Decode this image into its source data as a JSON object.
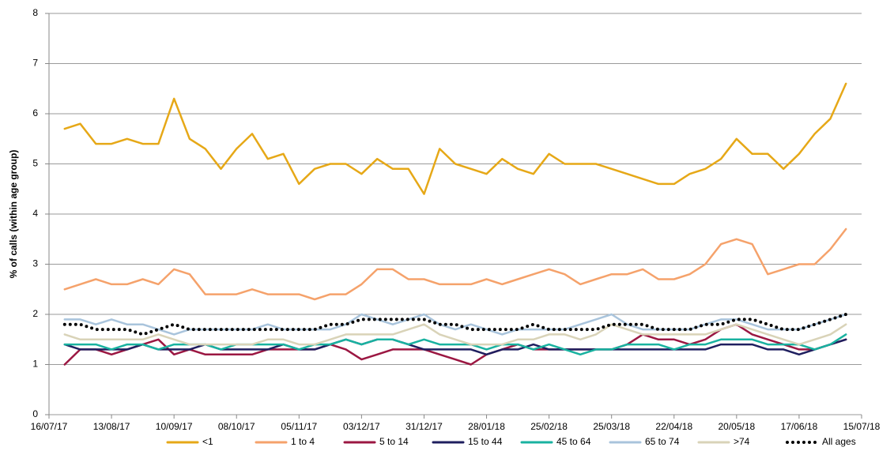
{
  "chart_data": {
    "type": "line",
    "y_label": "% of calls (within age group)",
    "xlim": [
      "16/07/17",
      "15/07/18"
    ],
    "xticks": [
      "16/07/17",
      "13/08/17",
      "10/09/17",
      "08/10/17",
      "05/11/17",
      "03/12/17",
      "31/12/17",
      "28/01/18",
      "25/02/18",
      "25/03/18",
      "22/04/18",
      "20/05/18",
      "17/06/18",
      "15/07/18"
    ],
    "ylim": [
      0,
      8
    ],
    "yticks": [
      0,
      1,
      2,
      3,
      4,
      5,
      6,
      7,
      8
    ],
    "grid": true,
    "legend": "bottom",
    "x": [
      "23/07/17",
      "30/07/17",
      "06/08/17",
      "13/08/17",
      "20/08/17",
      "27/08/17",
      "03/09/17",
      "10/09/17",
      "17/09/17",
      "24/09/17",
      "01/10/17",
      "08/10/17",
      "15/10/17",
      "22/10/17",
      "29/10/17",
      "05/11/17",
      "12/11/17",
      "19/11/17",
      "26/11/17",
      "03/12/17",
      "10/12/17",
      "17/12/17",
      "24/12/17",
      "31/12/17",
      "07/01/18",
      "14/01/18",
      "21/01/18",
      "28/01/18",
      "04/02/18",
      "11/02/18",
      "18/02/18",
      "25/02/18",
      "04/03/18",
      "11/03/18",
      "18/03/18",
      "25/03/18",
      "01/04/18",
      "08/04/18",
      "15/04/18",
      "22/04/18",
      "29/04/18",
      "06/05/18",
      "13/05/18",
      "20/05/18",
      "27/05/18",
      "03/06/18",
      "10/06/18",
      "17/06/18",
      "24/06/18",
      "01/07/18",
      "08/07/18"
    ],
    "series": [
      {
        "name": "<1",
        "color": "#E6A817",
        "values": [
          5.7,
          5.8,
          5.4,
          5.4,
          5.5,
          5.4,
          5.4,
          6.3,
          5.5,
          5.3,
          4.9,
          5.3,
          5.6,
          5.1,
          5.2,
          4.6,
          4.9,
          5.0,
          5.0,
          4.8,
          5.1,
          4.9,
          4.9,
          4.4,
          5.3,
          5.0,
          4.9,
          4.8,
          5.1,
          4.9,
          4.8,
          5.2,
          5.0,
          5.0,
          5.0,
          4.9,
          4.8,
          4.7,
          4.6,
          4.6,
          4.8,
          4.9,
          5.1,
          5.5,
          5.2,
          5.2,
          4.9,
          5.2,
          5.6,
          5.9,
          6.6
        ]
      },
      {
        "name": "1 to 4",
        "color": "#F5A26B",
        "values": [
          2.5,
          2.6,
          2.7,
          2.6,
          2.6,
          2.7,
          2.6,
          2.9,
          2.8,
          2.4,
          2.4,
          2.4,
          2.5,
          2.4,
          2.4,
          2.4,
          2.3,
          2.4,
          2.4,
          2.6,
          2.9,
          2.9,
          2.7,
          2.7,
          2.6,
          2.6,
          2.6,
          2.7,
          2.6,
          2.7,
          2.8,
          2.9,
          2.8,
          2.6,
          2.7,
          2.8,
          2.8,
          2.9,
          2.7,
          2.7,
          2.8,
          3.0,
          3.4,
          3.5,
          3.4,
          2.8,
          2.9,
          3.0,
          3.0,
          3.3,
          3.7
        ]
      },
      {
        "name": "5 to 14",
        "color": "#9B1742",
        "values": [
          1.0,
          1.3,
          1.3,
          1.2,
          1.3,
          1.4,
          1.5,
          1.2,
          1.3,
          1.2,
          1.2,
          1.2,
          1.2,
          1.3,
          1.3,
          1.3,
          1.3,
          1.4,
          1.3,
          1.1,
          1.2,
          1.3,
          1.3,
          1.3,
          1.2,
          1.1,
          1.0,
          1.2,
          1.3,
          1.4,
          1.3,
          1.3,
          1.3,
          1.3,
          1.3,
          1.3,
          1.4,
          1.6,
          1.5,
          1.5,
          1.4,
          1.5,
          1.7,
          1.8,
          1.6,
          1.5,
          1.4,
          1.3,
          1.3,
          1.4,
          1.5
        ]
      },
      {
        "name": "15 to 44",
        "color": "#1F1F5F",
        "values": [
          1.4,
          1.3,
          1.3,
          1.3,
          1.3,
          1.4,
          1.3,
          1.3,
          1.3,
          1.4,
          1.3,
          1.3,
          1.3,
          1.3,
          1.4,
          1.3,
          1.3,
          1.4,
          1.5,
          1.4,
          1.5,
          1.5,
          1.4,
          1.3,
          1.3,
          1.3,
          1.3,
          1.2,
          1.3,
          1.3,
          1.4,
          1.3,
          1.3,
          1.3,
          1.3,
          1.3,
          1.3,
          1.3,
          1.3,
          1.3,
          1.3,
          1.3,
          1.4,
          1.4,
          1.4,
          1.3,
          1.3,
          1.2,
          1.3,
          1.4,
          1.5
        ]
      },
      {
        "name": "45 to 64",
        "color": "#19B2A0",
        "values": [
          1.4,
          1.4,
          1.4,
          1.3,
          1.4,
          1.4,
          1.3,
          1.4,
          1.4,
          1.4,
          1.3,
          1.4,
          1.4,
          1.4,
          1.4,
          1.3,
          1.4,
          1.4,
          1.5,
          1.4,
          1.5,
          1.5,
          1.4,
          1.5,
          1.4,
          1.4,
          1.4,
          1.3,
          1.4,
          1.4,
          1.3,
          1.4,
          1.3,
          1.2,
          1.3,
          1.3,
          1.4,
          1.4,
          1.4,
          1.3,
          1.4,
          1.4,
          1.5,
          1.5,
          1.5,
          1.4,
          1.4,
          1.4,
          1.3,
          1.4,
          1.6
        ]
      },
      {
        "name": "65 to 74",
        "color": "#A9C4DC",
        "values": [
          1.9,
          1.9,
          1.8,
          1.9,
          1.8,
          1.8,
          1.7,
          1.6,
          1.7,
          1.7,
          1.7,
          1.7,
          1.7,
          1.8,
          1.7,
          1.7,
          1.7,
          1.7,
          1.8,
          2.0,
          1.9,
          1.8,
          1.9,
          2.0,
          1.8,
          1.7,
          1.8,
          1.7,
          1.6,
          1.7,
          1.7,
          1.7,
          1.7,
          1.8,
          1.9,
          2.0,
          1.8,
          1.7,
          1.7,
          1.7,
          1.7,
          1.8,
          1.9,
          1.9,
          1.8,
          1.7,
          1.7,
          1.7,
          1.8,
          1.9,
          2.0
        ]
      },
      {
        "name": ">74",
        "color": "#D9D3B8",
        "values": [
          1.6,
          1.5,
          1.5,
          1.5,
          1.5,
          1.5,
          1.6,
          1.5,
          1.4,
          1.4,
          1.4,
          1.4,
          1.4,
          1.5,
          1.5,
          1.4,
          1.4,
          1.5,
          1.6,
          1.6,
          1.6,
          1.6,
          1.7,
          1.8,
          1.6,
          1.5,
          1.4,
          1.4,
          1.4,
          1.5,
          1.5,
          1.6,
          1.6,
          1.5,
          1.6,
          1.8,
          1.7,
          1.6,
          1.6,
          1.6,
          1.6,
          1.6,
          1.7,
          1.8,
          1.7,
          1.6,
          1.5,
          1.4,
          1.5,
          1.6,
          1.8
        ]
      },
      {
        "name": "All ages",
        "color": "#000000",
        "style": "dotted",
        "values": [
          1.8,
          1.8,
          1.7,
          1.7,
          1.7,
          1.6,
          1.7,
          1.8,
          1.7,
          1.7,
          1.7,
          1.7,
          1.7,
          1.7,
          1.7,
          1.7,
          1.7,
          1.8,
          1.8,
          1.9,
          1.9,
          1.9,
          1.9,
          1.9,
          1.8,
          1.8,
          1.7,
          1.7,
          1.7,
          1.7,
          1.8,
          1.7,
          1.7,
          1.7,
          1.7,
          1.8,
          1.8,
          1.8,
          1.7,
          1.7,
          1.7,
          1.8,
          1.8,
          1.9,
          1.9,
          1.8,
          1.7,
          1.7,
          1.8,
          1.9,
          2.0
        ]
      }
    ]
  }
}
